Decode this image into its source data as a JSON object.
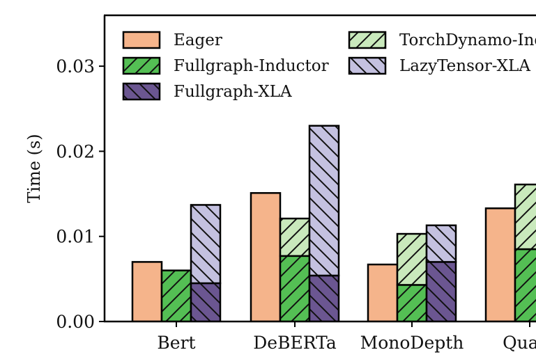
{
  "chart_data": {
    "type": "bar",
    "title": "",
    "xlabel": "",
    "ylabel": "Time (s)",
    "ylim": [
      0,
      0.035
    ],
    "yticks": [
      0.0,
      0.01,
      0.02,
      0.03
    ],
    "ytick_labels": [
      "0.00",
      "0.01",
      "0.02",
      "0.03"
    ],
    "grid": false,
    "legend_position": "top",
    "categories": [
      "Bert",
      "DeBERTa",
      "MonoDepth",
      "Quant"
    ],
    "bars": [
      {
        "name": "Eager",
        "color": "#f5b48b",
        "hatch": "none",
        "values": [
          0.007,
          0.0151,
          0.0067,
          0.0133
        ]
      },
      {
        "name": "TorchDynamo-Ind",
        "legend_label": "TorchDynamo-Ind",
        "stack": [
          {
            "name": "Fullgraph-Inductor",
            "color": "#54bf54",
            "hatch": "forward",
            "values": [
              0.006,
              0.0077,
              0.0043,
              0.0085
            ]
          },
          {
            "name": "TorchDynamo-Ind",
            "color": "#c9e9bc",
            "hatch": "forward",
            "values": [
              0.0,
              0.0044,
              0.006,
              0.0076
            ]
          }
        ],
        "totals": [
          0.006,
          0.0121,
          0.0103,
          0.0161
        ]
      },
      {
        "name": "LazyTensor-XLA",
        "legend_label": "LazyTensor-XLA",
        "stack": [
          {
            "name": "Fullgraph-XLA",
            "color": "#6b5691",
            "hatch": "backward",
            "values": [
              0.0045,
              0.0054,
              0.007,
              0.0
            ]
          },
          {
            "name": "LazyTensor-XLA",
            "color": "#c4c1e0",
            "hatch": "backward",
            "values": [
              0.0092,
              0.0176,
              0.0043,
              0.0
            ]
          }
        ],
        "totals": [
          0.0137,
          0.023,
          0.0113,
          0.0
        ]
      }
    ],
    "legend": [
      {
        "label": "Eager",
        "color": "#f5b48b",
        "hatch": "none"
      },
      {
        "label": "Fullgraph-Inductor",
        "color": "#54bf54",
        "hatch": "forward"
      },
      {
        "label": "Fullgraph-XLA",
        "color": "#6b5691",
        "hatch": "backward"
      },
      {
        "label": "TorchDynamo-Ind",
        "color": "#c9e9bc",
        "hatch": "forward"
      },
      {
        "label": "LazyTensor-XLA",
        "color": "#c4c1e0",
        "hatch": "backward"
      }
    ]
  }
}
